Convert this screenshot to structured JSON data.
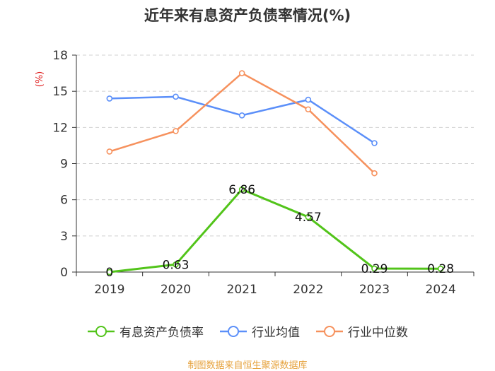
{
  "title": "近年来有息资产负债率情况(%)",
  "source": "制图数据来自恒生聚源数据库",
  "chart_data": {
    "type": "line",
    "title": "近年来有息资产负债率情况(%)",
    "ylabel": "(%)",
    "xlabel": "",
    "categories": [
      "2019",
      "2020",
      "2021",
      "2022",
      "2023",
      "2024"
    ],
    "ylim": [
      0,
      18
    ],
    "yticks": [
      0,
      3,
      6,
      9,
      12,
      15,
      18
    ],
    "grid": true,
    "legend_position": "bottom",
    "series": [
      {
        "name": "有息资产负债率",
        "color": "#52c41a",
        "values": [
          0,
          0.63,
          6.86,
          4.57,
          0.29,
          0.28
        ],
        "labels": [
          "0",
          "0.63",
          "6.86",
          "4.57",
          "0.29",
          "0.28"
        ]
      },
      {
        "name": "行业均值",
        "color": "#5b8ff9",
        "values": [
          14.4,
          14.55,
          13.0,
          14.3,
          10.7,
          null
        ]
      },
      {
        "name": "行业中位数",
        "color": "#f6915d",
        "values": [
          10.0,
          11.7,
          16.5,
          13.5,
          8.2,
          null
        ]
      }
    ]
  }
}
